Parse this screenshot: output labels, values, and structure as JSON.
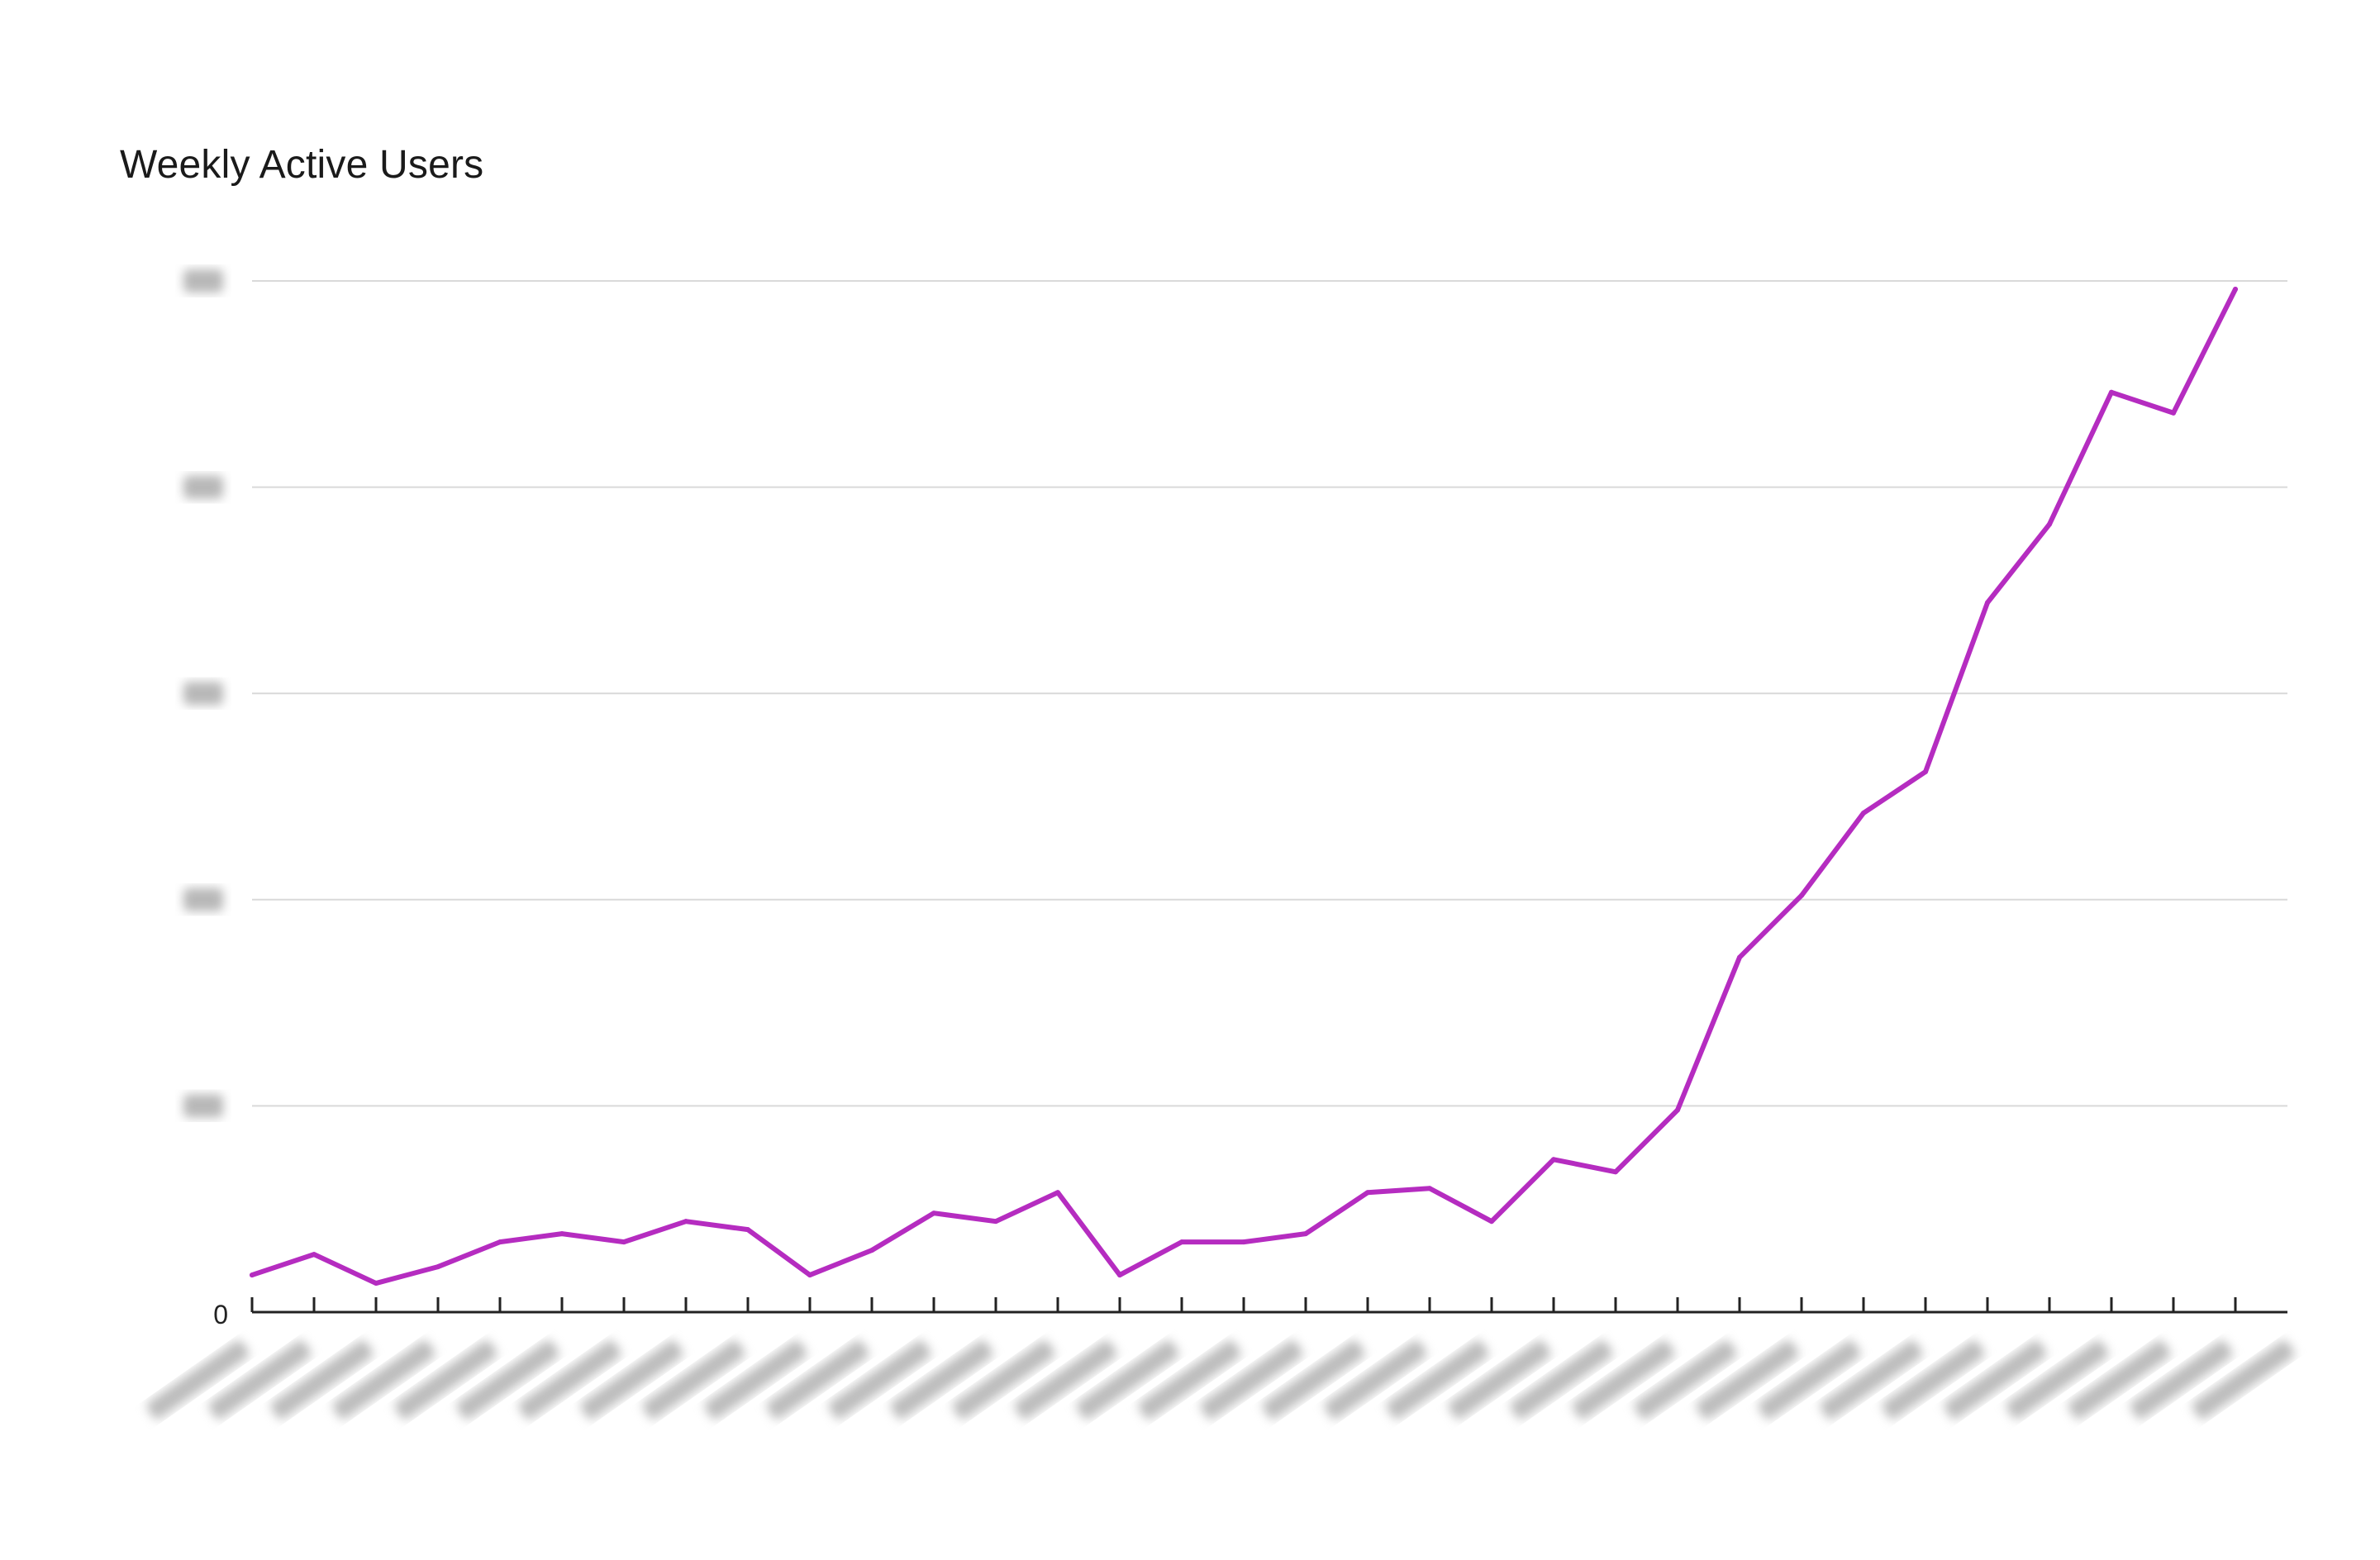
{
  "chart_data": {
    "type": "line",
    "title": "Weekly Active Users",
    "xlabel": "",
    "ylabel": "",
    "ylim": [
      0,
      250
    ],
    "y_ticks": [
      0,
      50,
      100,
      150,
      200,
      250
    ],
    "y_tick_labels": [
      "0",
      "",
      "",
      "",
      "",
      ""
    ],
    "grid": "horizontal",
    "legend": "none",
    "series": [
      {
        "color": "#b52cc0",
        "values": [
          9,
          14,
          7,
          11,
          17,
          19,
          17,
          22,
          20,
          9,
          15,
          24,
          22,
          29,
          9,
          17,
          17,
          19,
          29,
          30,
          22,
          37,
          34,
          49,
          86,
          101,
          121,
          131,
          172,
          191,
          223,
          218,
          248
        ]
      }
    ],
    "x_categories": 33
  }
}
